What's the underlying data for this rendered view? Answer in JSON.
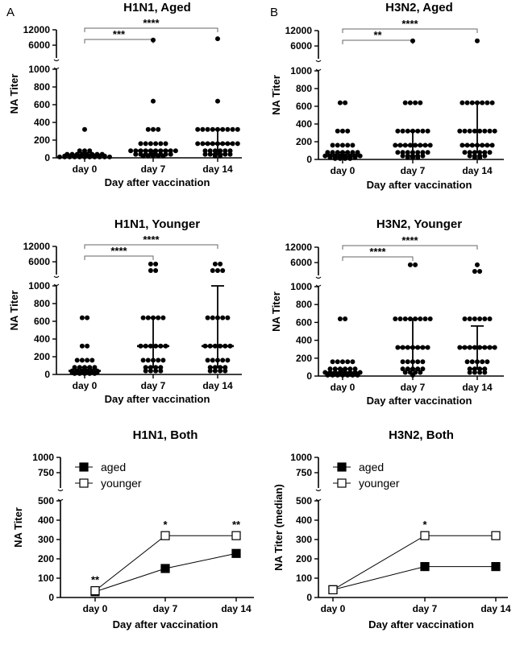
{
  "panel_letters": [
    "A",
    "B"
  ],
  "chart_data": [
    {
      "type": "scatter",
      "title": "H1N1, Aged",
      "xlabel": "Day after vaccination",
      "ylabel": "NA Titer",
      "categories": [
        "day 0",
        "day 7",
        "day 14"
      ],
      "y_ticks_low": [
        "0",
        "200",
        "400",
        "600",
        "800",
        "1000"
      ],
      "y_ticks_high": [
        "6000",
        "12000"
      ],
      "ylim_low": [
        0,
        1000
      ],
      "ylim_high": [
        1000,
        12000
      ],
      "significance": [
        {
          "from": "day 0",
          "to": "day 7",
          "label": "***"
        },
        {
          "from": "day 0",
          "to": "day 14",
          "label": "****"
        }
      ],
      "groups": [
        {
          "category": "day 0",
          "median": 20,
          "q1": 10,
          "q3": 40,
          "points": [
            320,
            80,
            80,
            80,
            40,
            40,
            40,
            40,
            40,
            40,
            40,
            40,
            20,
            20,
            20,
            20,
            20,
            20,
            20,
            20,
            20,
            10,
            10,
            10,
            10,
            10,
            10,
            10,
            10,
            10,
            10,
            10,
            10,
            10
          ]
        },
        {
          "category": "day 7",
          "median": 80,
          "q1": 40,
          "q3": 80,
          "points": [
            8000,
            640,
            320,
            320,
            320,
            160,
            160,
            160,
            160,
            160,
            160,
            80,
            80,
            80,
            80,
            80,
            80,
            80,
            80,
            80,
            80,
            40,
            40,
            40,
            40,
            40,
            40,
            40,
            40,
            20,
            20,
            20,
            20,
            20
          ]
        },
        {
          "category": "day 14",
          "median": 160,
          "q1": 40,
          "q3": 320,
          "points": [
            8500,
            640,
            320,
            320,
            320,
            320,
            320,
            320,
            320,
            320,
            320,
            160,
            160,
            160,
            160,
            160,
            160,
            160,
            160,
            160,
            80,
            80,
            80,
            80,
            80,
            80,
            40,
            40,
            40,
            40,
            40,
            40,
            20,
            20
          ]
        }
      ]
    },
    {
      "type": "scatter",
      "title": "H3N2, Aged",
      "xlabel": "Day after vaccination",
      "ylabel": "NA Titer",
      "categories": [
        "day 0",
        "day 7",
        "day 14"
      ],
      "y_ticks_low": [
        "0",
        "200",
        "400",
        "600",
        "800",
        "1000"
      ],
      "y_ticks_high": [
        "6000",
        "12000"
      ],
      "ylim_low": [
        0,
        1000
      ],
      "ylim_high": [
        1000,
        12000
      ],
      "significance": [
        {
          "from": "day 0",
          "to": "day 7",
          "label": "**"
        },
        {
          "from": "day 0",
          "to": "day 14",
          "label": "****"
        }
      ],
      "groups": [
        {
          "category": "day 0",
          "median": 40,
          "q1": 20,
          "q3": 80,
          "points": [
            640,
            640,
            320,
            320,
            320,
            160,
            160,
            160,
            160,
            160,
            80,
            80,
            80,
            80,
            80,
            80,
            80,
            40,
            40,
            40,
            40,
            40,
            40,
            40,
            40,
            20,
            20,
            20,
            20,
            20,
            20,
            10,
            10,
            10,
            10
          ]
        },
        {
          "category": "day 7",
          "median": 160,
          "q1": 40,
          "q3": 320,
          "points": [
            8000,
            640,
            640,
            640,
            640,
            320,
            320,
            320,
            320,
            320,
            320,
            320,
            160,
            160,
            160,
            160,
            160,
            160,
            160,
            160,
            80,
            80,
            80,
            80,
            80,
            80,
            80,
            40,
            40,
            40,
            40,
            40,
            20,
            20,
            20
          ]
        },
        {
          "category": "day 14",
          "median": 160,
          "q1": 80,
          "q3": 640,
          "points": [
            8000,
            640,
            640,
            640,
            640,
            640,
            640,
            640,
            320,
            320,
            320,
            320,
            320,
            320,
            320,
            320,
            160,
            160,
            160,
            160,
            160,
            160,
            160,
            80,
            80,
            80,
            80,
            80,
            80,
            40,
            40,
            40,
            40,
            20,
            20
          ]
        }
      ]
    },
    {
      "type": "scatter",
      "title": "H1N1, Younger",
      "xlabel": "Day after vaccination",
      "ylabel": "NA Titer",
      "categories": [
        "day 0",
        "day 7",
        "day 14"
      ],
      "y_ticks_low": [
        "0",
        "200",
        "400",
        "600",
        "800",
        "1000"
      ],
      "y_ticks_high": [
        "6000",
        "12000"
      ],
      "ylim_low": [
        0,
        1000
      ],
      "ylim_high": [
        1000,
        12000
      ],
      "significance": [
        {
          "from": "day 0",
          "to": "day 7",
          "label": "****"
        },
        {
          "from": "day 0",
          "to": "day 14",
          "label": "****"
        }
      ],
      "groups": [
        {
          "category": "day 0",
          "median": 40,
          "q1": 20,
          "q3": 80,
          "points": [
            640,
            640,
            320,
            320,
            160,
            160,
            160,
            160,
            80,
            80,
            80,
            80,
            80,
            40,
            40,
            40,
            40,
            40,
            40,
            20,
            20,
            20,
            20,
            20,
            20,
            10,
            10,
            10,
            10,
            10
          ]
        },
        {
          "category": "day 7",
          "median": 320,
          "q1": 80,
          "q3": 640,
          "points": [
            5120,
            5120,
            2560,
            2560,
            640,
            640,
            640,
            640,
            640,
            320,
            320,
            320,
            320,
            320,
            320,
            160,
            160,
            160,
            160,
            160,
            80,
            80,
            80,
            80,
            40,
            40,
            40,
            40
          ]
        },
        {
          "category": "day 14",
          "median": 320,
          "q1": 80,
          "q3": 1000,
          "points": [
            5120,
            5120,
            2560,
            2560,
            2560,
            640,
            640,
            640,
            640,
            640,
            320,
            320,
            320,
            320,
            320,
            320,
            160,
            160,
            160,
            160,
            160,
            80,
            80,
            80,
            80,
            40,
            40,
            40,
            40
          ]
        }
      ]
    },
    {
      "type": "scatter",
      "title": "H3N2, Younger",
      "xlabel": "Day after vaccination",
      "ylabel": "NA Titer",
      "categories": [
        "day 0",
        "day 7",
        "day 14"
      ],
      "y_ticks_low": [
        "0",
        "200",
        "400",
        "600",
        "800",
        "1000"
      ],
      "y_ticks_high": [
        "6000",
        "12000"
      ],
      "ylim_low": [
        0,
        1000
      ],
      "ylim_high": [
        1000,
        12000
      ],
      "significance": [
        {
          "from": "day 0",
          "to": "day 7",
          "label": "****"
        },
        {
          "from": "day 0",
          "to": "day 14",
          "label": "****"
        }
      ],
      "groups": [
        {
          "category": "day 0",
          "median": 40,
          "q1": 20,
          "q3": 80,
          "points": [
            640,
            640,
            160,
            160,
            160,
            160,
            160,
            80,
            80,
            80,
            80,
            80,
            80,
            40,
            40,
            40,
            40,
            40,
            40,
            40,
            40,
            20,
            20,
            20,
            20,
            20,
            20,
            10,
            10,
            10,
            10,
            10,
            10,
            10
          ]
        },
        {
          "category": "day 7",
          "median": 320,
          "q1": 80,
          "q3": 640,
          "points": [
            5120,
            5120,
            640,
            640,
            640,
            640,
            640,
            640,
            640,
            640,
            320,
            320,
            320,
            320,
            320,
            320,
            320,
            160,
            160,
            160,
            160,
            160,
            80,
            80,
            80,
            80,
            80,
            40,
            40,
            40,
            40,
            10
          ]
        },
        {
          "category": "day 14",
          "median": 320,
          "q1": 80,
          "q3": 560,
          "points": [
            5120,
            2560,
            2560,
            640,
            640,
            640,
            640,
            640,
            640,
            320,
            320,
            320,
            320,
            320,
            320,
            320,
            320,
            160,
            160,
            160,
            160,
            160,
            80,
            80,
            80,
            80,
            40,
            40,
            40,
            40
          ]
        }
      ]
    },
    {
      "type": "line",
      "title": "H1N1, Both",
      "xlabel": "Day after vaccination",
      "ylabel": "NA Titer",
      "categories": [
        "day 0",
        "day 7",
        "day 14"
      ],
      "y_ticks_low": [
        "0",
        "100",
        "200",
        "300",
        "400",
        "500"
      ],
      "y_ticks_high": [
        "500",
        "750",
        "1000"
      ],
      "ylim_low": [
        0,
        500
      ],
      "ylim_high": [
        500,
        1000
      ],
      "legend_position": "top-left",
      "series": [
        {
          "name": "aged",
          "marker": "filled-square",
          "values": [
            30,
            150,
            228
          ]
        },
        {
          "name": "younger",
          "marker": "open-square",
          "values": [
            35,
            320,
            320
          ]
        }
      ],
      "annotations": [
        {
          "category": "day 0",
          "label": "**"
        },
        {
          "category": "day 7",
          "label": "*"
        },
        {
          "category": "day 14",
          "label": "**"
        }
      ]
    },
    {
      "type": "line",
      "title": "H3N2, Both",
      "xlabel": "Day after vaccination",
      "ylabel": "NA Titer (median)",
      "categories": [
        "day 0",
        "day 7",
        "day 14"
      ],
      "y_ticks_low": [
        "0",
        "100",
        "200",
        "300",
        "400",
        "500"
      ],
      "y_ticks_high": [
        "500",
        "750",
        "1000"
      ],
      "ylim_low": [
        0,
        500
      ],
      "ylim_high": [
        500,
        1000
      ],
      "legend_position": "top-left",
      "series": [
        {
          "name": "aged",
          "marker": "filled-square",
          "values": [
            40,
            160,
            160
          ]
        },
        {
          "name": "younger",
          "marker": "open-square",
          "values": [
            40,
            320,
            320
          ]
        }
      ],
      "annotations": [
        {
          "category": "day 7",
          "label": "*"
        }
      ]
    }
  ]
}
